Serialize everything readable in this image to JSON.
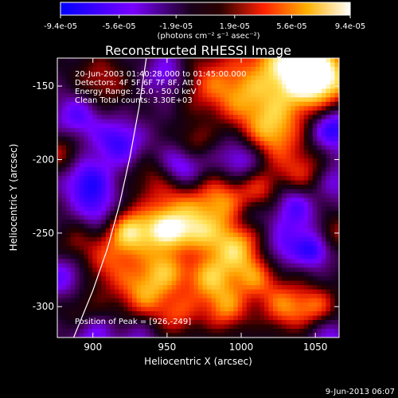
{
  "chart_data": {
    "type": "heatmap",
    "title": "Reconstructed RHESSI Image",
    "xlabel": "Heliocentric X (arcsec)",
    "ylabel": "Heliocentric Y (arcsec)",
    "xlim": [
      876,
      1066
    ],
    "ylim": [
      -321,
      -131
    ],
    "x_ticks": [
      900,
      950,
      1000,
      1050
    ],
    "y_ticks": [
      -300,
      -250,
      -200,
      -150
    ],
    "colorbar": {
      "ticks": [
        "-9.4e-05",
        "-5.6e-05",
        "-1.9e-05",
        "1.9e-05",
        "5.6e-05",
        "9.4e-05"
      ],
      "tick_values": [
        -9.4e-05,
        -5.6e-05,
        -1.9e-05,
        1.9e-05,
        5.6e-05,
        9.4e-05
      ],
      "range": [
        -9.4e-05,
        9.4e-05
      ],
      "units_label": "(photons cm⁻² s⁻¹ asec⁻²)"
    },
    "annotations": [
      "20-Jun-2003 01:40:28.000 to 01:45:00.000",
      "Detectors: 4F 5F 6F 7F 8F, Att 0",
      "Energy Range: 25.0 - 50.0 keV",
      "Clean    Total counts: 3.30E+03"
    ],
    "peak_label": "Position of Peak = [926,-249]",
    "peak": [
      926,
      -249
    ],
    "limb_curve": [
      [
        887,
        -321
      ],
      [
        900,
        -289
      ],
      [
        910,
        -260
      ],
      [
        918,
        -230
      ],
      [
        925,
        -198
      ],
      [
        931,
        -165
      ],
      [
        936,
        -131
      ]
    ],
    "blobs": [
      [
        1030,
        -138,
        22,
        1.0
      ],
      [
        1055,
        -145,
        16,
        0.9
      ],
      [
        978,
        -148,
        15,
        0.55
      ],
      [
        1000,
        -160,
        13,
        0.4
      ],
      [
        905,
        -148,
        14,
        0.45
      ],
      [
        1020,
        -182,
        14,
        0.8
      ],
      [
        1040,
        -210,
        12,
        0.55
      ],
      [
        940,
        -212,
        10,
        0.35
      ],
      [
        985,
        -228,
        13,
        0.75
      ],
      [
        955,
        -230,
        12,
        0.55
      ],
      [
        925,
        -249,
        12,
        1.0
      ],
      [
        948,
        -248,
        10,
        0.7
      ],
      [
        968,
        -250,
        11,
        0.8
      ],
      [
        997,
        -258,
        13,
        0.85
      ],
      [
        950,
        -272,
        11,
        0.65
      ],
      [
        910,
        -272,
        12,
        0.5
      ],
      [
        935,
        -290,
        13,
        0.8
      ],
      [
        978,
        -280,
        13,
        0.8
      ],
      [
        1010,
        -280,
        11,
        0.6
      ],
      [
        1030,
        -300,
        12,
        0.7
      ],
      [
        1052,
        -300,
        10,
        0.55
      ],
      [
        990,
        -302,
        11,
        0.65
      ],
      [
        958,
        -306,
        10,
        0.5
      ],
      [
        878,
        -195,
        10,
        0.45
      ],
      [
        888,
        -258,
        10,
        0.35
      ],
      [
        1012,
        -220,
        10,
        0.5
      ],
      [
        968,
        -188,
        9,
        0.4
      ],
      [
        1062,
        -250,
        10,
        0.45
      ],
      [
        1050,
        -262,
        8,
        -0.55
      ],
      [
        892,
        -300,
        12,
        0.3
      ],
      [
        1040,
        -248,
        14,
        -0.35
      ],
      [
        1062,
        -178,
        11,
        -0.8
      ],
      [
        890,
        -170,
        12,
        -0.55
      ],
      [
        918,
        -188,
        11,
        -0.6
      ],
      [
        896,
        -215,
        12,
        -0.65
      ],
      [
        960,
        -205,
        11,
        -0.55
      ],
      [
        950,
        -142,
        11,
        -0.45
      ],
      [
        1000,
        -200,
        11,
        -0.55
      ],
      [
        1035,
        -228,
        10,
        -0.45
      ],
      [
        905,
        -235,
        10,
        -0.45
      ],
      [
        880,
        -280,
        12,
        -0.5
      ],
      [
        900,
        -320,
        10,
        -0.45
      ],
      [
        1060,
        -320,
        10,
        -0.4
      ],
      [
        1025,
        -262,
        10,
        -0.35
      ],
      [
        1005,
        -240,
        8,
        -0.3
      ],
      [
        965,
        -265,
        8,
        -0.3
      ],
      [
        930,
        -320,
        9,
        -0.3
      ],
      [
        1063,
        -215,
        9,
        -0.4
      ]
    ]
  },
  "footer": {
    "timestamp": "9-Jun-2013 06:07"
  },
  "colors": {
    "background": "#000000",
    "text": "#ffffff",
    "limb": "#ffffff"
  }
}
